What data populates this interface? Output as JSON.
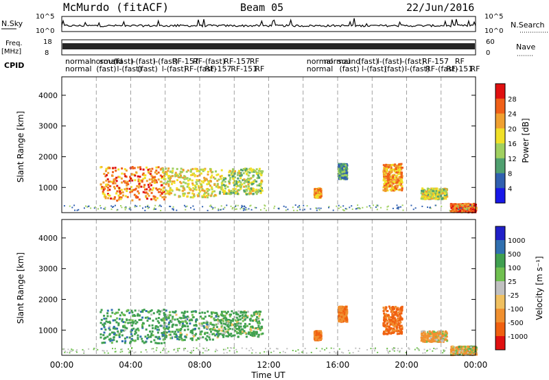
{
  "header": {
    "station": "McMurdo (fitACF)",
    "beam": "Beam 05",
    "date": "22/Jun/2016"
  },
  "top_panels": {
    "nsky_label": "N.Sky",
    "nsky_ticks": [
      "10^5",
      "10^0"
    ],
    "nsearch_label": "N.Search",
    "nsearch_ticks": [
      "10^5",
      "10^0"
    ],
    "freq_label": "Freq.",
    "freq_unit": "[MHz]",
    "freq_ticks": [
      "18",
      "8"
    ],
    "nave_label": "Nave",
    "nave_ticks": [
      "60",
      "0"
    ],
    "cpid_label": "CPID",
    "cpid_row1": [
      {
        "hour": 0.2,
        "text": "normal"
      },
      {
        "hour": 1.7,
        "text": "normal"
      },
      {
        "hour": 2.2,
        "text": "sound"
      },
      {
        "hour": 3.0,
        "text": "(fast)"
      },
      {
        "hour": 4.0,
        "text": "l-(fast)"
      },
      {
        "hour": 5.3,
        "text": "l-(fast)"
      },
      {
        "hour": 6.4,
        "text": "RF-157"
      },
      {
        "hour": 7.6,
        "text": "RF-(fast)"
      },
      {
        "hour": 9.4,
        "text": "RF-157"
      },
      {
        "hour": 10.9,
        "text": "RF"
      },
      {
        "hour": 14.2,
        "text": "normal"
      },
      {
        "hour": 15.2,
        "text": "normal"
      },
      {
        "hour": 16.0,
        "text": "sound"
      },
      {
        "hour": 17.2,
        "text": "(fast)"
      },
      {
        "hour": 18.3,
        "text": "l-(fast)"
      },
      {
        "hour": 19.6,
        "text": "l-(fast)"
      },
      {
        "hour": 20.9,
        "text": "RF-157"
      },
      {
        "hour": 22.8,
        "text": "RF"
      }
    ],
    "cpid_row2": [
      {
        "hour": 0.2,
        "text": "normal"
      },
      {
        "hour": 2.0,
        "text": "(fast)"
      },
      {
        "hour": 3.2,
        "text": "l-(fast)"
      },
      {
        "hour": 4.4,
        "text": "(fast)"
      },
      {
        "hour": 5.8,
        "text": "l-(fast)"
      },
      {
        "hour": 7.1,
        "text": "RF-(fast)"
      },
      {
        "hour": 8.3,
        "text": "RF-157"
      },
      {
        "hour": 9.8,
        "text": "RF-151"
      },
      {
        "hour": 11.2,
        "text": "RF"
      },
      {
        "hour": 14.2,
        "text": "normal"
      },
      {
        "hour": 16.1,
        "text": "(fast)"
      },
      {
        "hour": 17.4,
        "text": "l-(fast)"
      },
      {
        "hour": 18.7,
        "text": "(fast)"
      },
      {
        "hour": 19.9,
        "text": "l-(fast)"
      },
      {
        "hour": 21.1,
        "text": "RF-(fast)"
      },
      {
        "hour": 22.3,
        "text": "RF-151"
      },
      {
        "hour": 23.7,
        "text": "RF"
      }
    ]
  },
  "chart_data": [
    {
      "type": "heatmap",
      "name": "power-panel",
      "ylabel": "Slant Range [km]",
      "xlabel": "",
      "xlim": [
        0,
        24
      ],
      "ylim": [
        180,
        4600
      ],
      "yticks": [
        1000,
        2000,
        3000,
        4000
      ],
      "colorbar": {
        "label": "Power [dB]",
        "ticks": [
          "28",
          "24",
          "20",
          "16",
          "12",
          "8",
          "4"
        ],
        "colors": [
          "#e01010",
          "#f06018",
          "#f0a030",
          "#f0e028",
          "#a0d060",
          "#50a070",
          "#3060b0",
          "#1818e8"
        ]
      },
      "blobs": [
        {
          "t0": 2.2,
          "t1": 6.0,
          "r0": 600,
          "r1": 1700,
          "value": 24
        },
        {
          "t0": 5.8,
          "t1": 9.0,
          "r0": 700,
          "r1": 1650,
          "value": 18
        },
        {
          "t0": 9.0,
          "t1": 11.6,
          "r0": 800,
          "r1": 1650,
          "value": 15
        },
        {
          "t0": 14.6,
          "t1": 15.0,
          "r0": 700,
          "r1": 1000,
          "value": 22
        },
        {
          "t0": 16.0,
          "t1": 16.5,
          "r0": 1300,
          "r1": 1800,
          "value": 10
        },
        {
          "t0": 18.6,
          "t1": 19.7,
          "r0": 900,
          "r1": 1800,
          "value": 22
        },
        {
          "t0": 20.8,
          "t1": 22.3,
          "r0": 650,
          "r1": 1000,
          "value": 16
        },
        {
          "t0": 22.5,
          "t1": 24.0,
          "r0": 220,
          "r1": 500,
          "value": 26
        }
      ]
    },
    {
      "type": "heatmap",
      "name": "velocity-panel",
      "ylabel": "Slant Range [km]",
      "xlabel": "Time UT",
      "xlim": [
        0,
        24
      ],
      "ylim": [
        180,
        4600
      ],
      "yticks": [
        1000,
        2000,
        3000,
        4000
      ],
      "xticks": [
        "00:00",
        "04:00",
        "08:00",
        "12:00",
        "16:00",
        "20:00",
        "00:00"
      ],
      "colorbar": {
        "label": "Velocity [m s⁻¹]",
        "ticks": [
          "1000",
          "500",
          "100",
          "25",
          "-25",
          "-100",
          "-500",
          "-1000"
        ],
        "colors": [
          "#2020c8",
          "#3070b0",
          "#40a050",
          "#70c050",
          "#c0c0c0",
          "#f0c060",
          "#f09030",
          "#f06010",
          "#e01010"
        ]
      },
      "blobs": [
        {
          "t0": 2.2,
          "t1": 6.0,
          "r0": 600,
          "r1": 1700,
          "value": 300
        },
        {
          "t0": 5.8,
          "t1": 9.0,
          "r0": 700,
          "r1": 1650,
          "value": 250
        },
        {
          "t0": 9.0,
          "t1": 11.6,
          "r0": 800,
          "r1": 1650,
          "value": 200
        },
        {
          "t0": 14.6,
          "t1": 15.0,
          "r0": 700,
          "r1": 1000,
          "value": -400
        },
        {
          "t0": 16.0,
          "t1": 16.5,
          "r0": 1300,
          "r1": 1800,
          "value": -400
        },
        {
          "t0": 18.6,
          "t1": 19.7,
          "r0": 900,
          "r1": 1800,
          "value": -600
        },
        {
          "t0": 20.8,
          "t1": 22.3,
          "r0": 650,
          "r1": 1000,
          "value": -200
        },
        {
          "t0": 22.5,
          "t1": 24.0,
          "r0": 220,
          "r1": 500,
          "value": -150
        }
      ]
    }
  ]
}
